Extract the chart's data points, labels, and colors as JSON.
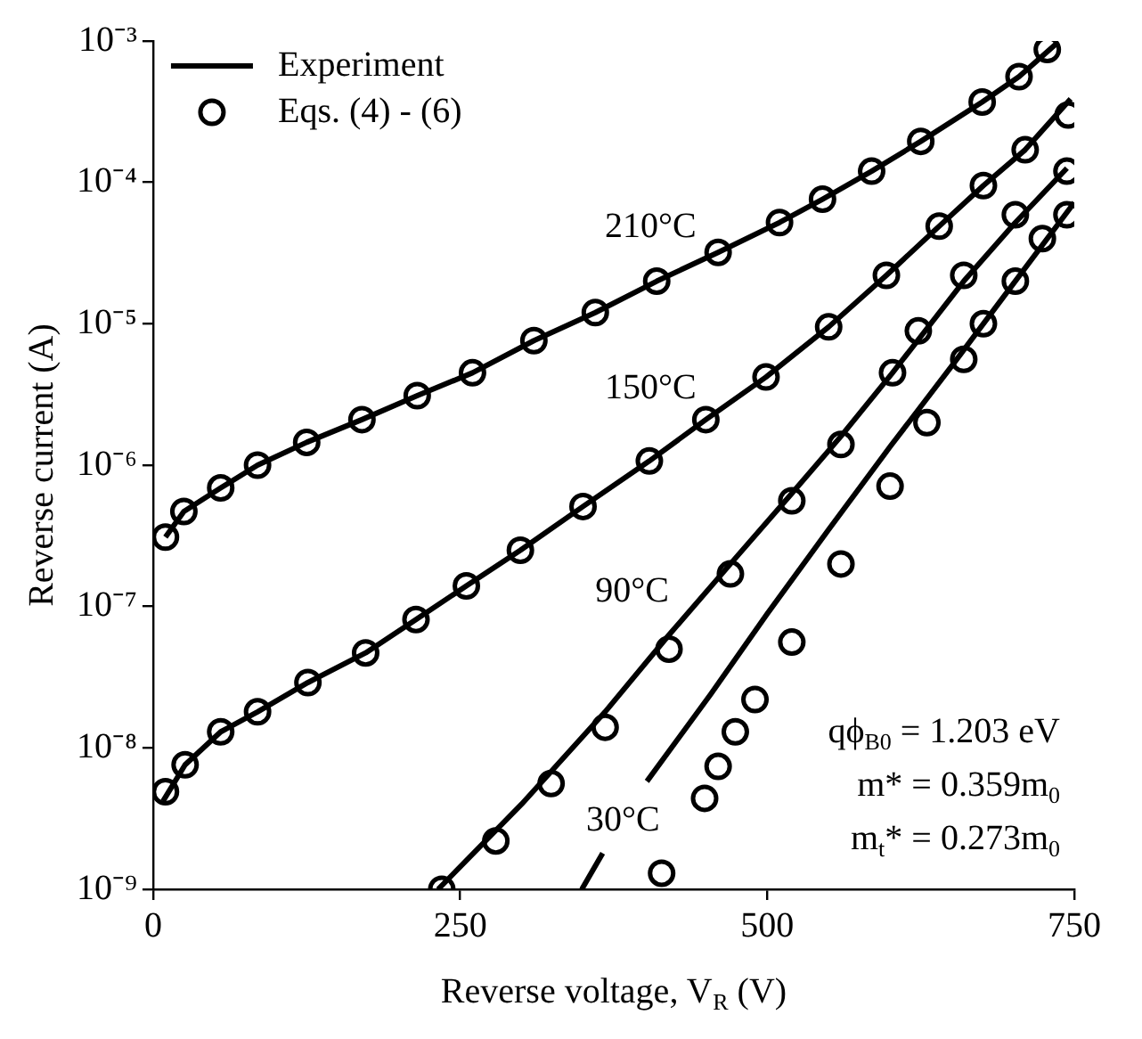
{
  "chart_data": {
    "type": "line",
    "xlabel": "Reverse voltage, V$_{R}$ (V)",
    "ylabel": "Reverse current (A)",
    "log": "y",
    "grid": false,
    "legend": "top left",
    "xlim": [
      0,
      750
    ],
    "xticks": [
      0,
      250,
      500,
      750
    ],
    "ylim": [
      1e-09,
      0.001
    ],
    "yticks": [
      {
        "value": 1e-09,
        "label": "10⁻⁹"
      },
      {
        "value": 1e-08,
        "label": "10⁻⁸"
      },
      {
        "value": 1e-07,
        "label": "10⁻⁷"
      },
      {
        "value": 1e-06,
        "label": "10⁻⁶"
      },
      {
        "value": 1e-05,
        "label": "10⁻⁵"
      },
      {
        "value": 0.0001,
        "label": "10⁻⁴"
      },
      {
        "value": 0.001,
        "label": "10⁻³"
      }
    ],
    "series": [
      {
        "name": "Experiment",
        "marker": "none",
        "line_style": "solid",
        "color": "#000000",
        "x": [
          10,
          25,
          55,
          85,
          125,
          170,
          215,
          260,
          310,
          360,
          410,
          460,
          510,
          545,
          585,
          625,
          675,
          705,
          735
        ],
        "values": [
          3.1e-07,
          4.7e-07,
          6.9e-07,
          1e-06,
          1.45e-06,
          2.1e-06,
          3.1e-06,
          4.5e-06,
          7.6e-06,
          1.2e-05,
          2e-05,
          3.2e-05,
          5.2e-05,
          7.6e-05,
          0.00012,
          0.000195,
          0.00037,
          0.00056,
          0.00095
        ]
      },
      {
        "name": "Eqs. (4) - (6)",
        "type": "scatter",
        "marker": "circle",
        "color": "#000000",
        "x": [
          10,
          25,
          55,
          85,
          125,
          170,
          215,
          260,
          310,
          360,
          410,
          460,
          510,
          545,
          585,
          625,
          675,
          705,
          728
        ],
        "values": [
          3.1e-07,
          4.7e-07,
          6.9e-07,
          1e-06,
          1.45e-06,
          2.1e-06,
          3.1e-06,
          4.5e-06,
          7.6e-06,
          1.2e-05,
          2e-05,
          3.2e-05,
          5.2e-05,
          7.6e-05,
          0.00012,
          0.000195,
          0.00037,
          0.00056,
          0.00087
        ]
      },
      {
        "type": "line",
        "marker": "none",
        "line_style": "solid",
        "color": "#000000",
        "x": [
          8,
          26,
          55,
          85,
          126,
          173,
          214,
          255,
          299,
          350,
          404,
          450,
          499,
          550,
          597,
          640,
          676,
          710,
          747
        ],
        "values": [
          4.2e-09,
          7.6e-09,
          1.3e-08,
          1.8e-08,
          2.9e-08,
          4.7e-08,
          8.1e-08,
          1.4e-07,
          2.5e-07,
          5.1e-07,
          1.07e-06,
          2.1e-06,
          4.2e-06,
          9.5e-06,
          2.2e-05,
          4.9e-05,
          9.5e-05,
          0.00017,
          0.00039
        ]
      },
      {
        "type": "scatter",
        "marker": "circle",
        "color": "#000000",
        "x": [
          10,
          26,
          55,
          85,
          126,
          173,
          214,
          255,
          299,
          350,
          404,
          450,
          499,
          550,
          597,
          640,
          676,
          710,
          745
        ],
        "values": [
          4.9e-09,
          7.6e-09,
          1.3e-08,
          1.8e-08,
          2.9e-08,
          4.7e-08,
          8.1e-08,
          1.4e-07,
          2.5e-07,
          5.1e-07,
          1.07e-06,
          2.1e-06,
          4.2e-06,
          9.5e-06,
          2.2e-05,
          4.9e-05,
          9.5e-05,
          0.00017,
          0.0003
        ]
      },
      {
        "type": "line",
        "marker": "none",
        "line_style": "solid",
        "color": "#000000",
        "x": [
          232,
          300,
          368,
          420,
          470,
          520,
          560,
          602,
          660,
          702,
          744
        ],
        "values": [
          1e-09,
          4e-09,
          1.8e-08,
          6.3e-08,
          2e-07,
          6.3e-07,
          1.6e-06,
          4.5e-06,
          2e-05,
          5.2e-05,
          0.000126
        ]
      },
      {
        "type": "scatter",
        "marker": "circle",
        "color": "#000000",
        "x": [
          235,
          279,
          324,
          368,
          420,
          470,
          520,
          560,
          602,
          623,
          660,
          702,
          744
        ],
        "values": [
          1e-09,
          2.2e-09,
          5.6e-09,
          1.4e-08,
          5e-08,
          1.7e-07,
          5.6e-07,
          1.4e-06,
          4.5e-06,
          8.9e-06,
          2.2e-05,
          5.9e-05,
          0.00012
        ]
      },
      {
        "type": "line",
        "marker": "none",
        "line_style": "solid",
        "color": "#000000",
        "x": [
          349,
          366,
          384,
          402,
          454,
          500,
          550,
          600,
          650,
          700,
          750
        ],
        "values": [
          1e-09,
          1.8e-09,
          null,
          5.8e-09,
          2.4e-08,
          8.9e-08,
          3.5e-07,
          1.35e-06,
          5e-06,
          1.9e-05,
          7.2e-05
        ]
      },
      {
        "type": "scatter",
        "marker": "circle",
        "color": "#000000",
        "x": [
          414,
          449,
          460,
          474,
          490,
          520,
          560,
          600,
          630,
          660,
          676,
          702,
          724,
          744
        ],
        "values": [
          1.3e-09,
          4.4e-09,
          7.4e-09,
          1.3e-08,
          2.2e-08,
          5.6e-08,
          2e-07,
          7.1e-07,
          2e-06,
          5.6e-06,
          1e-05,
          2e-05,
          4e-05,
          5.9e-05
        ]
      }
    ],
    "annotations": [
      "210°C",
      "150°C",
      "90°C",
      "30°C",
      "qϕ$_{B0}$ = 1.203 eV",
      "m* = 0.359m$_{0}$",
      "m$_{t}$* = 0.273m$_{0}$"
    ]
  }
}
